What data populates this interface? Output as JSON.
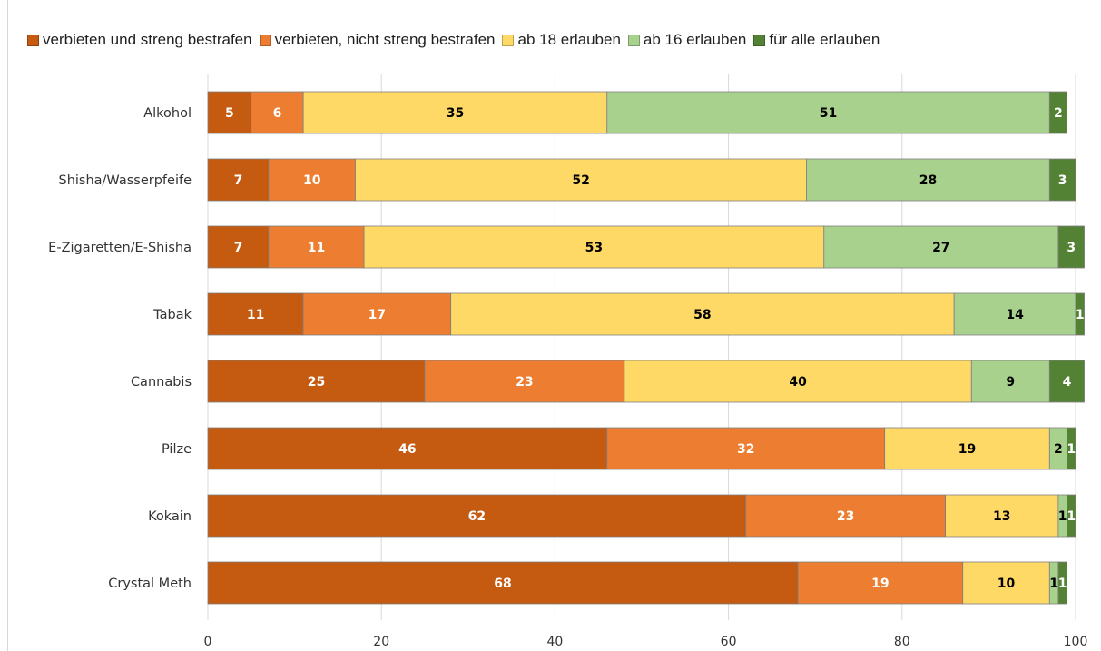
{
  "chart_data": {
    "type": "bar",
    "orientation": "horizontal",
    "stacked": true,
    "categories": [
      "Alkohol",
      "Shisha/Wasserpfeife",
      "E-Zigaretten/E-Shisha",
      "Tabak",
      "Cannabis",
      "Pilze",
      "Kokain",
      "Crystal Meth"
    ],
    "series": [
      {
        "name": "verbieten und streng bestrafen",
        "color": "#c55a11",
        "label_color": "#ffffff",
        "values": [
          5,
          7,
          7,
          11,
          25,
          46,
          62,
          68
        ]
      },
      {
        "name": "verbieten, nicht streng bestrafen",
        "color": "#ed7d31",
        "label_color": "#ffffff",
        "values": [
          6,
          10,
          11,
          17,
          23,
          32,
          23,
          19
        ]
      },
      {
        "name": "ab 18 erlauben",
        "color": "#ffd966",
        "label_color": "#000000",
        "values": [
          35,
          52,
          53,
          58,
          40,
          19,
          13,
          10
        ]
      },
      {
        "name": "ab 16 erlauben",
        "color": "#a9d18e",
        "label_color": "#000000",
        "values": [
          51,
          28,
          27,
          14,
          9,
          2,
          1,
          1
        ]
      },
      {
        "name": "für alle erlauben",
        "color": "#548235",
        "label_color": "#ffffff",
        "values": [
          2,
          3,
          3,
          1,
          4,
          1,
          1,
          1
        ]
      }
    ],
    "xlim": [
      0,
      100
    ],
    "x_ticks": [
      "0",
      "20",
      "40",
      "60",
      "80",
      "100"
    ],
    "grid": true,
    "legend_position": "top",
    "title": "",
    "xlabel": "",
    "ylabel": ""
  }
}
